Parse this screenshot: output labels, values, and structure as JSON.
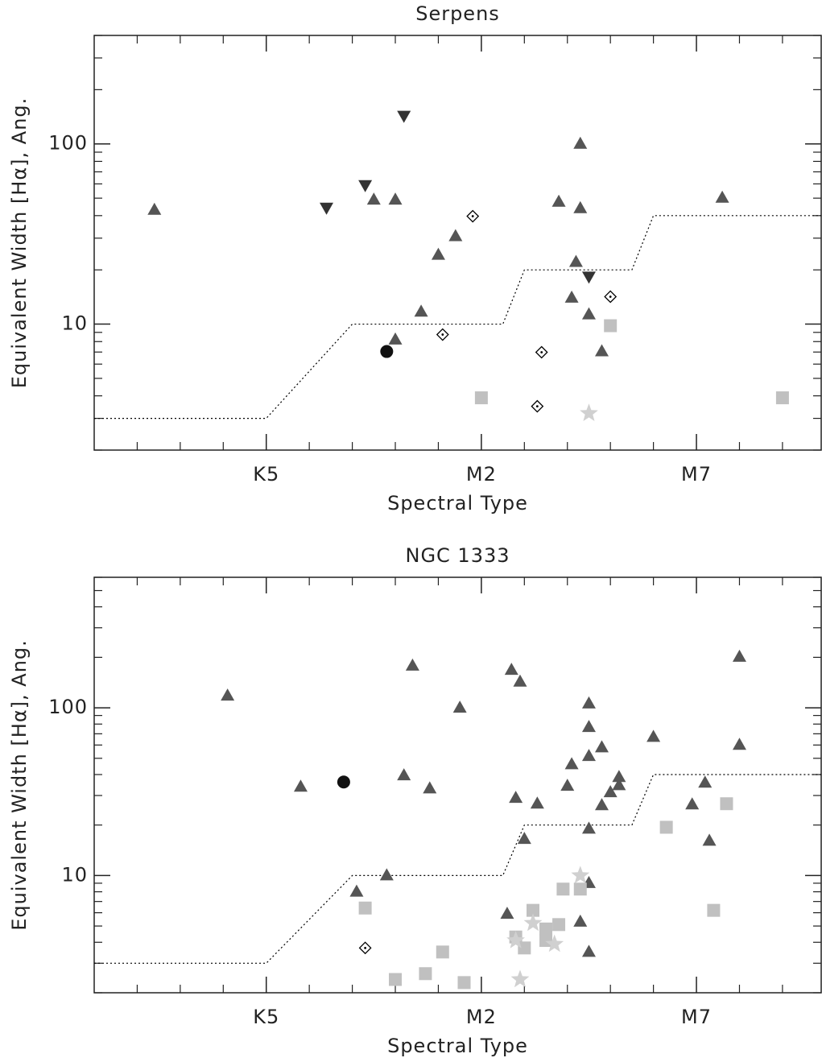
{
  "chart_data": [
    {
      "type": "scatter",
      "title": "Serpens",
      "xlabel": "Spectral Type",
      "ylabel": "Equivalent Width [Hα], Ang.",
      "xlim": [
        -7,
        9.9
      ],
      "xticks": [
        {
          "value": -3,
          "label": "K5"
        },
        {
          "value": 2,
          "label": "M2"
        },
        {
          "value": 7,
          "label": "M7"
        }
      ],
      "xminorticks": [
        -6,
        -5,
        -4,
        -2,
        -1,
        0,
        1,
        3,
        4,
        5,
        6,
        8,
        9
      ],
      "ylim": [
        2,
        400
      ],
      "yscale": "log",
      "yticks": [
        10,
        100
      ],
      "yminorticks": [
        2,
        3,
        4,
        5,
        6,
        7,
        8,
        9,
        20,
        30,
        40,
        50,
        60,
        70,
        80,
        90,
        200,
        300,
        400
      ],
      "series": [
        {
          "marker": "dotted-line",
          "color": "#000000",
          "x": [
            -7,
            -3,
            -1,
            2.5,
            3,
            5.5,
            6,
            9.9
          ],
          "values": [
            3,
            3,
            10,
            10,
            20,
            20,
            40,
            40
          ]
        },
        {
          "marker": "triangle-up",
          "color": "#555555",
          "x": [
            -5.6,
            -0.5,
            0.0,
            0.0,
            0.6,
            1.0,
            1.4,
            3.8,
            4.3,
            4.3,
            4.2,
            4.1,
            4.5,
            4.8,
            7.6
          ],
          "values": [
            43,
            49,
            49,
            8.2,
            11.7,
            24.2,
            30.7,
            47.7,
            100,
            43.9,
            22.1,
            14.0,
            11.3,
            7.05,
            50.2
          ]
        },
        {
          "marker": "triangle-down",
          "color": "#333333",
          "x": [
            -1.6,
            -0.7,
            0.2,
            4.5
          ],
          "values": [
            43.9,
            58.6,
            142,
            18.2
          ]
        },
        {
          "marker": "circle",
          "color": "#111111",
          "x": [
            -0.2
          ],
          "values": [
            7.05
          ]
        },
        {
          "marker": "diamond-dot",
          "color": "#000000",
          "x": [
            1.8,
            1.1,
            3.4,
            3.3,
            5.0
          ],
          "values": [
            39.7,
            8.75,
            6.98,
            3.5,
            14.2
          ]
        },
        {
          "marker": "square",
          "color": "#c0c0c0",
          "x": [
            2.0,
            5.0,
            9.0
          ],
          "values": [
            3.9,
            9.8,
            3.9
          ]
        },
        {
          "marker": "star",
          "color": "#d0d0d0",
          "x": [
            4.5
          ],
          "values": [
            3.2
          ]
        }
      ]
    },
    {
      "type": "scatter",
      "title": "NGC 1333",
      "xlabel": "Spectral Type",
      "ylabel": "Equivalent Width [Hα], Ang.",
      "xlim": [
        -7,
        9.9
      ],
      "xticks": [
        {
          "value": -3,
          "label": "K5"
        },
        {
          "value": 2,
          "label": "M2"
        },
        {
          "value": 7,
          "label": "M7"
        }
      ],
      "xminorticks": [
        -6,
        -5,
        -4,
        -2,
        -1,
        0,
        1,
        3,
        4,
        5,
        6,
        8,
        9
      ],
      "ylim": [
        2,
        600
      ],
      "yscale": "log",
      "yticks": [
        10,
        100
      ],
      "yminorticks": [
        2,
        3,
        4,
        5,
        6,
        7,
        8,
        9,
        20,
        30,
        40,
        50,
        60,
        70,
        80,
        90,
        200,
        300,
        400,
        500,
        600
      ],
      "series": [
        {
          "marker": "dotted-line",
          "color": "#000000",
          "x": [
            -7,
            -3,
            -1,
            2.5,
            3,
            5.5,
            6,
            9.9
          ],
          "values": [
            3,
            3,
            10,
            10,
            20,
            20,
            40,
            40
          ]
        },
        {
          "marker": "triangle-up",
          "color": "#555555",
          "x": [
            -3.9,
            -2.2,
            -0.9,
            -0.2,
            0.2,
            0.4,
            0.8,
            1.5,
            2.7,
            2.9,
            2.8,
            3.0,
            3.3,
            2.6,
            4.0,
            4.1,
            4.5,
            4.5,
            4.5,
            4.8,
            4.8,
            4.5,
            4.5,
            4.3,
            4.5,
            5.0,
            5.2,
            5.2,
            6.0,
            6.9,
            7.2,
            7.3,
            8.0,
            8.0
          ],
          "values": [
            118,
            33.8,
            8.0,
            10,
            39.5,
            178,
            33,
            100,
            168,
            143,
            29,
            16.5,
            26.8,
            5.9,
            34.2,
            46,
            106,
            76.7,
            51.5,
            58,
            26.2,
            19,
            9,
            5.3,
            3.5,
            31.3,
            38.6,
            34.5,
            67,
            26.5,
            35.7,
            16.1,
            201,
            60
          ]
        },
        {
          "marker": "circle",
          "color": "#111111",
          "x": [
            -1.2
          ],
          "values": [
            36.1
          ]
        },
        {
          "marker": "diamond-dot",
          "color": "#000000",
          "x": [
            -0.7
          ],
          "values": [
            3.7
          ]
        },
        {
          "marker": "square",
          "color": "#c0c0c0",
          "x": [
            -0.7,
            0.0,
            0.7,
            1.1,
            1.6,
            2.8,
            3.0,
            3.2,
            3.5,
            3.5,
            3.8,
            3.9,
            4.3,
            6.3,
            7.4,
            7.7
          ],
          "values": [
            6.4,
            2.4,
            2.6,
            3.5,
            2.3,
            4.3,
            3.7,
            6.2,
            4.8,
            4.1,
            5.1,
            8.3,
            8.3,
            19.4,
            6.2,
            26.8
          ]
        },
        {
          "marker": "star",
          "color": "#d0d0d0",
          "x": [
            4.3,
            2.8,
            3.2,
            3.7,
            2.9
          ],
          "values": [
            10,
            4.1,
            5.2,
            3.9,
            2.4
          ]
        }
      ]
    }
  ]
}
